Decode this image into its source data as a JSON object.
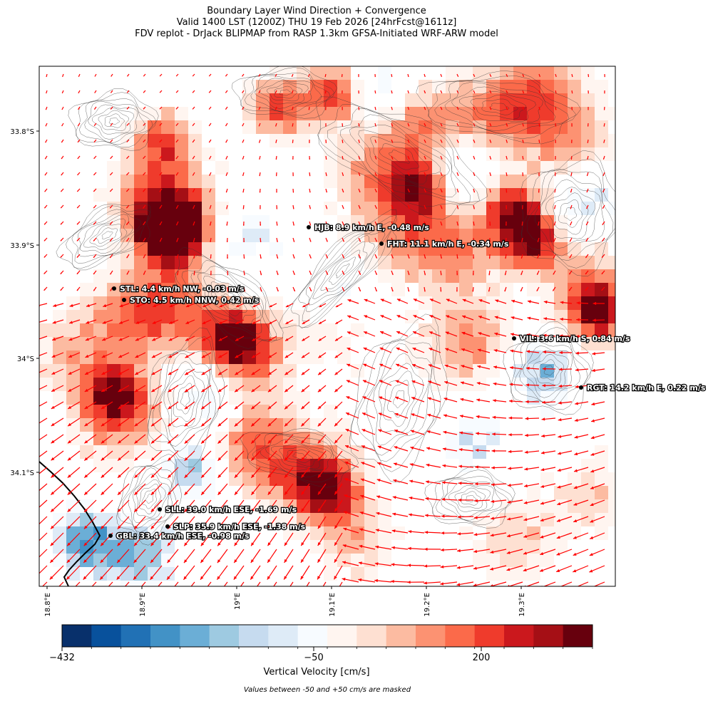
{
  "header": {
    "title_line1": "Boundary Layer Wind Direction + Convergence",
    "title_line2": "Valid 1400 LST (1200Z) THU 19 Feb 2026 [24hrFcst@1611z]",
    "title_line3": "FDV replot - DrJack BLIPMAP from RASP 1.3km GFSA-Initiated WRF-ARW model"
  },
  "map": {
    "lat_labels": [
      "33.8°S",
      "33.9°S",
      "34°S",
      "34.1°S"
    ],
    "lon_labels": [
      "18.8°E",
      "18.9°E",
      "19°E",
      "19.1°E",
      "19.2°E",
      "19.3°E"
    ],
    "vector_color": "#ff0000",
    "stations": [
      {
        "code": "HJB",
        "label": "HJB: 8.9 km/h E, -0.48 m/s"
      },
      {
        "code": "FHT",
        "label": "FHT: 11.1 km/h E, -0.34 m/s"
      },
      {
        "code": "STL",
        "label": "STL: 4.4 km/h NW, -0.03 m/s"
      },
      {
        "code": "STO",
        "label": "STO: 4.5 km/h NNW, 0.42 m/s"
      },
      {
        "code": "VIL",
        "label": "VIL: 3.6 km/h S, 0.84 m/s"
      },
      {
        "code": "RGT",
        "label": "RGT: 14.2 km/h E, 0.22 m/s"
      },
      {
        "code": "SLL",
        "label": "SLL: 39.0 km/h ESE, -1.69 m/s"
      },
      {
        "code": "SLP",
        "label": "SLP: 35.9 km/h ESE, -1.38 m/s"
      },
      {
        "code": "GBL",
        "label": "GBL: 33.4 km/h ESE, -0.98 m/s"
      }
    ]
  },
  "colorbar": {
    "colors": [
      "#08306b",
      "#08519c",
      "#2171b5",
      "#4292c6",
      "#6baed6",
      "#9ecae1",
      "#c6dbef",
      "#deebf7",
      "#f7fbff",
      "#fff5f0",
      "#fee0d2",
      "#fcbba1",
      "#fc9272",
      "#fb6a4a",
      "#ef3b2c",
      "#cb181d",
      "#a50f15",
      "#67000d"
    ],
    "tick_labels": [
      "−432",
      "−50",
      "200"
    ],
    "label": "Vertical Velocity [cm/s]",
    "note": "Values between -50 and +50 cm/s are masked"
  }
}
